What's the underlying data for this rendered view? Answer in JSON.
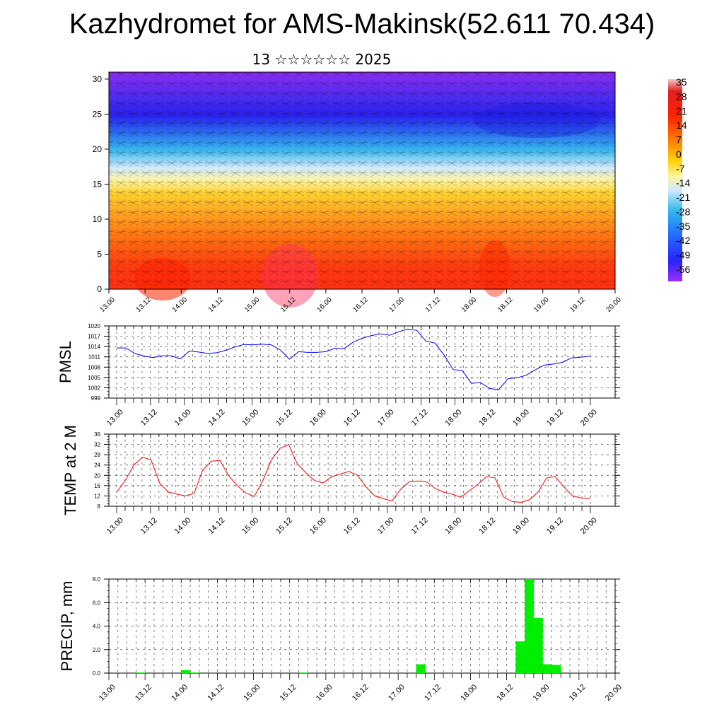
{
  "header": {
    "title": "Kazhydromet for AMS-Makinsk(52.611 70.434)",
    "subtitle": "13 ☆☆☆☆☆☆ 2025"
  },
  "chart_data": [
    {
      "type": "heatmap",
      "title": "",
      "xlabel": "",
      "ylabel": "",
      "x_tick_labels": [
        "13.00",
        "13.12",
        "14.00",
        "14.12",
        "15.00",
        "15.12",
        "16.00",
        "16.12",
        "17.00",
        "17.12",
        "18.00",
        "18.12",
        "19.00",
        "19.12",
        "20.00"
      ],
      "y_tick_labels": [
        "0",
        "5",
        "10",
        "15",
        "20",
        "25",
        "30"
      ],
      "ylim": [
        0,
        31
      ],
      "colorbar": {
        "labels": [
          "35",
          "28",
          "21",
          "14",
          "7",
          "0",
          "-7",
          "-14",
          "-21",
          "-28",
          "-35",
          "-42",
          "-49",
          "-56"
        ]
      }
    },
    {
      "type": "line",
      "ylabel": "PMSL",
      "ylim": [
        999,
        1020
      ],
      "y_tick_labels": [
        "1020",
        "1017",
        "1014",
        "1011",
        "1008",
        "1005",
        "1002",
        "999"
      ],
      "x_tick_labels": [
        "13.00",
        "13.12",
        "14.00",
        "14.12",
        "15.00",
        "15.12",
        "16.00",
        "16.12",
        "17.00",
        "17.12",
        "18.00",
        "18.12",
        "19.00",
        "19.12",
        "20.00"
      ],
      "color": "#0000ff",
      "values": [
        1013.6,
        1013.6,
        1012,
        1011.2,
        1010.8,
        1011.3,
        1011.3,
        1010.4,
        1012.7,
        1012.4,
        1012,
        1012.2,
        1012.9,
        1013.9,
        1014.6,
        1014.5,
        1014.7,
        1014.5,
        1013,
        1010.3,
        1012.5,
        1012.3,
        1012.3,
        1012.5,
        1013.5,
        1013.4,
        1015.3,
        1016.4,
        1017.2,
        1017.7,
        1017.3,
        1018.3,
        1019.1,
        1018.7,
        1015.6,
        1015,
        1011.5,
        1007.3,
        1007,
        1003.3,
        1003.5,
        1001.8,
        1001.4,
        1004.6,
        1004.9,
        1005.6,
        1007.2,
        1008.6,
        1008.9,
        1009.4,
        1010.7,
        1010.9,
        1011.2
      ]
    },
    {
      "type": "line",
      "ylabel": "TEMP at 2 M",
      "ylim": [
        8,
        36
      ],
      "y_tick_labels": [
        "36",
        "32",
        "28",
        "24",
        "20",
        "16",
        "12",
        "8"
      ],
      "x_tick_labels": [
        "13.00",
        "13.12",
        "14.00",
        "14.12",
        "15.00",
        "15.12",
        "16.00",
        "16.12",
        "17.00",
        "17.12",
        "18.00",
        "18.12",
        "19.00",
        "19.12",
        "20.00"
      ],
      "color": "#ff0000",
      "values": [
        13.5,
        18,
        24,
        27,
        26,
        17,
        13.5,
        12.7,
        12,
        13,
        22,
        25.5,
        25.8,
        20,
        16,
        13.2,
        11.8,
        18,
        26,
        30.5,
        32,
        24.5,
        21,
        18,
        17,
        19.5,
        20.5,
        21.5,
        20,
        15.5,
        12,
        11,
        10,
        14.5,
        17.5,
        17.8,
        17.5,
        15,
        13.5,
        12.7,
        11.5,
        14,
        16.5,
        19.5,
        19,
        11.5,
        9.8,
        9.5,
        10.5,
        13.5,
        19,
        19.5,
        15.5,
        12,
        11.2,
        11
      ]
    },
    {
      "type": "bar",
      "ylabel": "PRECIP, mm",
      "ylim": [
        0,
        8
      ],
      "y_tick_labels": [
        "0.0",
        "2.0",
        "4.0",
        "6.0",
        "8.0"
      ],
      "x_tick_labels": [
        "13.00",
        "13.12",
        "14.00",
        "14.12",
        "15.00",
        "15.12",
        "16.00",
        "16.12",
        "17.00",
        "17.12",
        "18.00",
        "18.12",
        "19.00",
        "19.12",
        "20.00"
      ],
      "color": "#00ee00",
      "values": [
        0,
        0,
        0,
        0.05,
        0,
        0,
        0,
        0,
        0.25,
        0.05,
        0,
        0,
        0,
        0,
        0,
        0,
        0,
        0,
        0,
        0,
        0,
        0.05,
        0,
        0,
        0,
        0,
        0,
        0,
        0,
        0,
        0,
        0,
        0,
        0,
        0.75,
        0,
        0,
        0,
        0,
        0,
        0,
        0,
        0,
        0,
        0,
        2.7,
        8.0,
        4.7,
        0.75,
        0.7,
        0,
        0,
        0,
        0,
        0,
        0,
        0
      ]
    }
  ]
}
